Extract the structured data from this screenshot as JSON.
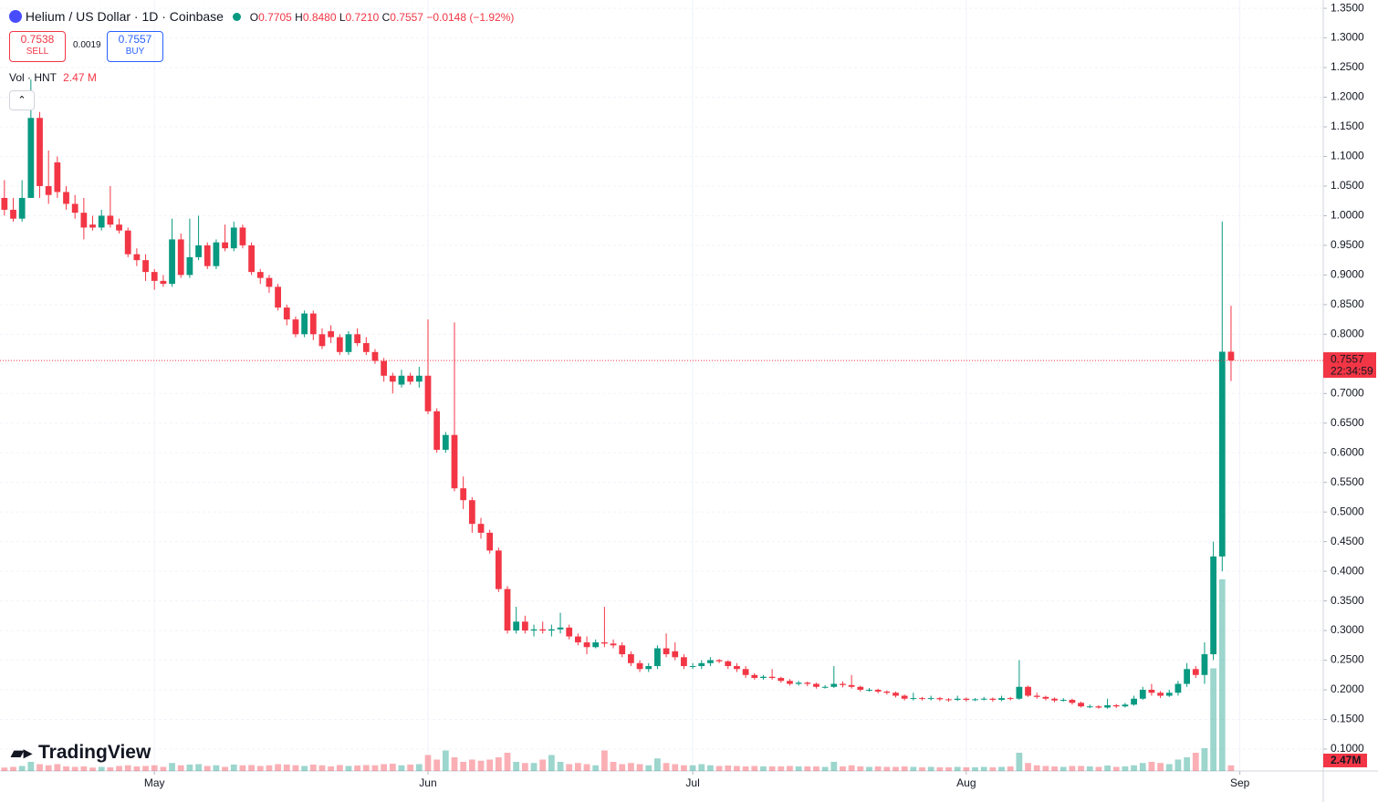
{
  "header": {
    "title": "Helium / US Dollar · 1D · Coinbase",
    "o": "O",
    "open": "0.7705",
    "h": "H",
    "high": "0.8480",
    "l": "L",
    "low": "0.7210",
    "c": "C",
    "close": "0.7557",
    "change": "−0.0148 (−1.92%)",
    "sell_price": "0.7538",
    "sell": "SELL",
    "spread": "0.0019",
    "buy_price": "0.7557",
    "buy": "BUY",
    "vol_label": "Vol · HNT",
    "vol_value": "2.47 M"
  },
  "branding": "TradingView",
  "chart_data": {
    "type": "candlestick",
    "up_color": "#089981",
    "down_color": "#f23645",
    "grid": true,
    "open": [
      1.03,
      1.01,
      0.995,
      1.03,
      1.165,
      1.05,
      1.09,
      1.04,
      1.02,
      1.005,
      0.985,
      0.98,
      1.0,
      0.985,
      0.975,
      0.935,
      0.925,
      0.905,
      0.89,
      0.885,
      0.96,
      0.9,
      0.93,
      0.95,
      0.915,
      0.955,
      0.945,
      0.98,
      0.95,
      0.905,
      0.895,
      0.88,
      0.845,
      0.825,
      0.8,
      0.835,
      0.8,
      0.805,
      0.795,
      0.77,
      0.8,
      0.785,
      0.77,
      0.755,
      0.73,
      0.715,
      0.73,
      0.72,
      0.73,
      0.67,
      0.605,
      0.63,
      0.54,
      0.52,
      0.48,
      0.465,
      0.435,
      0.37,
      0.3,
      0.315,
      0.3,
      0.302,
      0.3,
      0.302,
      0.305,
      0.29,
      0.28,
      0.272,
      0.28,
      0.278,
      0.275,
      0.26,
      0.245,
      0.235,
      0.24,
      0.27,
      0.265,
      0.255,
      0.24,
      0.24,
      0.245,
      0.25,
      0.248,
      0.24,
      0.235,
      0.225,
      0.22,
      0.222,
      0.22,
      0.215,
      0.21,
      0.212,
      0.21,
      0.205,
      0.205,
      0.21,
      0.208,
      0.205,
      0.2,
      0.2,
      0.197,
      0.195,
      0.19,
      0.185,
      0.186,
      0.185,
      0.186,
      0.184,
      0.183,
      0.185,
      0.183,
      0.184,
      0.185,
      0.183,
      0.186,
      0.185,
      0.205,
      0.19,
      0.188,
      0.185,
      0.182,
      0.183,
      0.178,
      0.172,
      0.172,
      0.17,
      0.174,
      0.172,
      0.175,
      0.185,
      0.2,
      0.195,
      0.19,
      0.195,
      0.21,
      0.235,
      0.225,
      0.26,
      0.425,
      0.7705
    ],
    "high": [
      1.06,
      1.03,
      1.06,
      1.23,
      1.175,
      1.11,
      1.1,
      1.05,
      1.035,
      1.03,
      1.0,
      1.01,
      1.05,
      0.995,
      0.98,
      0.945,
      0.935,
      0.91,
      0.9,
      0.995,
      0.97,
      0.995,
      1.0,
      0.955,
      0.96,
      0.985,
      0.99,
      0.985,
      0.955,
      0.91,
      0.9,
      0.885,
      0.85,
      0.83,
      0.84,
      0.84,
      0.81,
      0.815,
      0.8,
      0.805,
      0.81,
      0.795,
      0.775,
      0.76,
      0.735,
      0.74,
      0.735,
      0.745,
      0.825,
      0.675,
      0.635,
      0.82,
      0.56,
      0.525,
      0.49,
      0.47,
      0.44,
      0.375,
      0.34,
      0.325,
      0.31,
      0.315,
      0.31,
      0.33,
      0.31,
      0.295,
      0.29,
      0.285,
      0.34,
      0.285,
      0.28,
      0.265,
      0.25,
      0.245,
      0.275,
      0.295,
      0.28,
      0.26,
      0.245,
      0.25,
      0.255,
      0.252,
      0.25,
      0.245,
      0.24,
      0.228,
      0.225,
      0.235,
      0.222,
      0.218,
      0.215,
      0.214,
      0.212,
      0.208,
      0.24,
      0.214,
      0.225,
      0.207,
      0.203,
      0.202,
      0.199,
      0.197,
      0.192,
      0.195,
      0.188,
      0.19,
      0.188,
      0.186,
      0.19,
      0.187,
      0.186,
      0.188,
      0.187,
      0.19,
      0.188,
      0.25,
      0.207,
      0.195,
      0.19,
      0.187,
      0.186,
      0.185,
      0.18,
      0.175,
      0.174,
      0.185,
      0.176,
      0.178,
      0.19,
      0.205,
      0.21,
      0.198,
      0.2,
      0.215,
      0.245,
      0.24,
      0.28,
      0.45,
      0.99,
      0.848
    ],
    "low": [
      1.0,
      0.99,
      0.99,
      1.03,
      1.03,
      1.02,
      1.03,
      1.01,
      0.995,
      0.96,
      0.975,
      0.975,
      0.98,
      0.97,
      0.93,
      0.915,
      0.89,
      0.875,
      0.88,
      0.88,
      0.895,
      0.895,
      0.925,
      0.91,
      0.91,
      0.94,
      0.94,
      0.945,
      0.9,
      0.885,
      0.87,
      0.84,
      0.815,
      0.795,
      0.795,
      0.79,
      0.775,
      0.785,
      0.765,
      0.765,
      0.78,
      0.765,
      0.75,
      0.72,
      0.7,
      0.71,
      0.715,
      0.71,
      0.665,
      0.6,
      0.6,
      0.535,
      0.505,
      0.465,
      0.455,
      0.43,
      0.365,
      0.295,
      0.295,
      0.295,
      0.29,
      0.295,
      0.29,
      0.295,
      0.285,
      0.275,
      0.26,
      0.27,
      0.272,
      0.27,
      0.255,
      0.24,
      0.23,
      0.23,
      0.235,
      0.255,
      0.25,
      0.235,
      0.235,
      0.235,
      0.24,
      0.245,
      0.235,
      0.23,
      0.22,
      0.217,
      0.217,
      0.217,
      0.212,
      0.207,
      0.207,
      0.206,
      0.202,
      0.202,
      0.203,
      0.204,
      0.202,
      0.197,
      0.197,
      0.194,
      0.192,
      0.187,
      0.182,
      0.182,
      0.182,
      0.182,
      0.181,
      0.18,
      0.181,
      0.18,
      0.181,
      0.182,
      0.18,
      0.181,
      0.182,
      0.183,
      0.188,
      0.185,
      0.182,
      0.179,
      0.18,
      0.175,
      0.17,
      0.169,
      0.168,
      0.168,
      0.169,
      0.17,
      0.173,
      0.183,
      0.19,
      0.186,
      0.188,
      0.19,
      0.205,
      0.22,
      0.21,
      0.25,
      0.4,
      0.721
    ],
    "close": [
      1.01,
      0.995,
      1.03,
      1.165,
      1.05,
      1.035,
      1.04,
      1.02,
      1.005,
      0.98,
      0.98,
      1.0,
      0.985,
      0.975,
      0.935,
      0.925,
      0.905,
      0.89,
      0.885,
      0.96,
      0.9,
      0.93,
      0.95,
      0.915,
      0.955,
      0.945,
      0.98,
      0.95,
      0.905,
      0.895,
      0.88,
      0.845,
      0.825,
      0.8,
      0.835,
      0.8,
      0.78,
      0.795,
      0.77,
      0.8,
      0.785,
      0.77,
      0.755,
      0.73,
      0.72,
      0.73,
      0.72,
      0.73,
      0.67,
      0.605,
      0.63,
      0.54,
      0.52,
      0.48,
      0.465,
      0.435,
      0.37,
      0.3,
      0.315,
      0.3,
      0.302,
      0.3,
      0.302,
      0.305,
      0.29,
      0.28,
      0.272,
      0.28,
      0.278,
      0.275,
      0.26,
      0.245,
      0.235,
      0.24,
      0.27,
      0.26,
      0.255,
      0.24,
      0.24,
      0.245,
      0.25,
      0.248,
      0.24,
      0.235,
      0.225,
      0.22,
      0.222,
      0.22,
      0.215,
      0.21,
      0.212,
      0.21,
      0.205,
      0.205,
      0.21,
      0.208,
      0.205,
      0.2,
      0.2,
      0.197,
      0.195,
      0.19,
      0.185,
      0.186,
      0.185,
      0.186,
      0.184,
      0.183,
      0.185,
      0.183,
      0.184,
      0.185,
      0.183,
      0.186,
      0.185,
      0.205,
      0.19,
      0.188,
      0.185,
      0.182,
      0.183,
      0.178,
      0.172,
      0.172,
      0.17,
      0.174,
      0.172,
      0.175,
      0.185,
      0.2,
      0.195,
      0.19,
      0.195,
      0.21,
      0.235,
      0.225,
      0.26,
      0.425,
      0.7705,
      0.7557
    ],
    "volume": [
      1.5,
      1.8,
      2.2,
      4,
      3,
      2.5,
      3,
      2,
      1.8,
      2,
      1.5,
      1.8,
      1.6,
      2.2,
      2.5,
      2,
      2.2,
      2.5,
      1.8,
      3.5,
      2.5,
      2.8,
      3,
      2.2,
      2.5,
      1.8,
      2.8,
      2.5,
      2.6,
      2.2,
      2.5,
      3,
      2.8,
      2.5,
      2.2,
      2.8,
      2.5,
      2,
      2.6,
      2.2,
      2.4,
      2.6,
      2.5,
      3,
      3.2,
      2.5,
      2.8,
      3,
      7,
      5,
      9,
      6,
      4,
      5,
      4.5,
      5,
      6,
      8,
      4,
      3.5,
      3.5,
      5,
      7,
      4,
      3,
      3.5,
      3,
      2.5,
      9,
      4,
      3,
      3.5,
      3,
      2.5,
      5.5,
      3.5,
      3,
      2.5,
      2.5,
      3,
      2.5,
      2.2,
      2.4,
      2.2,
      2,
      2.2,
      2,
      2,
      2,
      2.2,
      2,
      2,
      2,
      1.8,
      4,
      2,
      2.5,
      2,
      1.8,
      2,
      1.8,
      1.8,
      2,
      1.8,
      1.6,
      1.8,
      1.6,
      1.6,
      1.8,
      1.6,
      1.6,
      1.8,
      1.6,
      1.8,
      2,
      8,
      3.5,
      2.5,
      2.2,
      2,
      1.8,
      2.2,
      2.2,
      2,
      1.8,
      2.4,
      1.8,
      2,
      2.5,
      3.5,
      4,
      3.5,
      3,
      5,
      6,
      8,
      10,
      45,
      84,
      2.47
    ],
    "vlim": [
      0,
      90
    ],
    "xlim": [
      -0.5,
      149.45
    ],
    "xticks": [
      {
        "value": 17,
        "label": "May"
      },
      {
        "value": 48,
        "label": "Jun"
      },
      {
        "value": 78,
        "label": "Jul"
      },
      {
        "value": 109,
        "label": "Aug"
      },
      {
        "value": 140,
        "label": "Sep"
      }
    ],
    "ylim": [
      0.063,
      1.364
    ],
    "yticks": [
      {
        "value": 0.1,
        "label": "0.1000"
      },
      {
        "value": 0.15,
        "label": "0.1500"
      },
      {
        "value": 0.2,
        "label": "0.2000"
      },
      {
        "value": 0.25,
        "label": "0.2500"
      },
      {
        "value": 0.3,
        "label": "0.3000"
      },
      {
        "value": 0.35,
        "label": "0.3500"
      },
      {
        "value": 0.4,
        "label": "0.4000"
      },
      {
        "value": 0.45,
        "label": "0.4500"
      },
      {
        "value": 0.5,
        "label": "0.5000"
      },
      {
        "value": 0.55,
        "label": "0.5500"
      },
      {
        "value": 0.6,
        "label": "0.6000"
      },
      {
        "value": 0.65,
        "label": "0.6500"
      },
      {
        "value": 0.7,
        "label": "0.7000"
      },
      {
        "value": 0.75,
        "label": "0.7500"
      },
      {
        "value": 0.8,
        "label": "0.8000"
      },
      {
        "value": 0.85,
        "label": "0.8500"
      },
      {
        "value": 0.9,
        "label": "0.9000"
      },
      {
        "value": 0.95,
        "label": "0.9500"
      },
      {
        "value": 1.0,
        "label": "1.0000"
      },
      {
        "value": 1.05,
        "label": "1.0500"
      },
      {
        "value": 1.1,
        "label": "1.1000"
      },
      {
        "value": 1.15,
        "label": "1.1500"
      },
      {
        "value": 1.2,
        "label": "1.2000"
      },
      {
        "value": 1.25,
        "label": "1.2500"
      },
      {
        "value": 1.3,
        "label": "1.3000"
      },
      {
        "value": 1.35,
        "label": "1.3500"
      }
    ],
    "last_price_label": "0.7557",
    "countdown": "22:34:59",
    "volume_badge": "2.47M"
  }
}
